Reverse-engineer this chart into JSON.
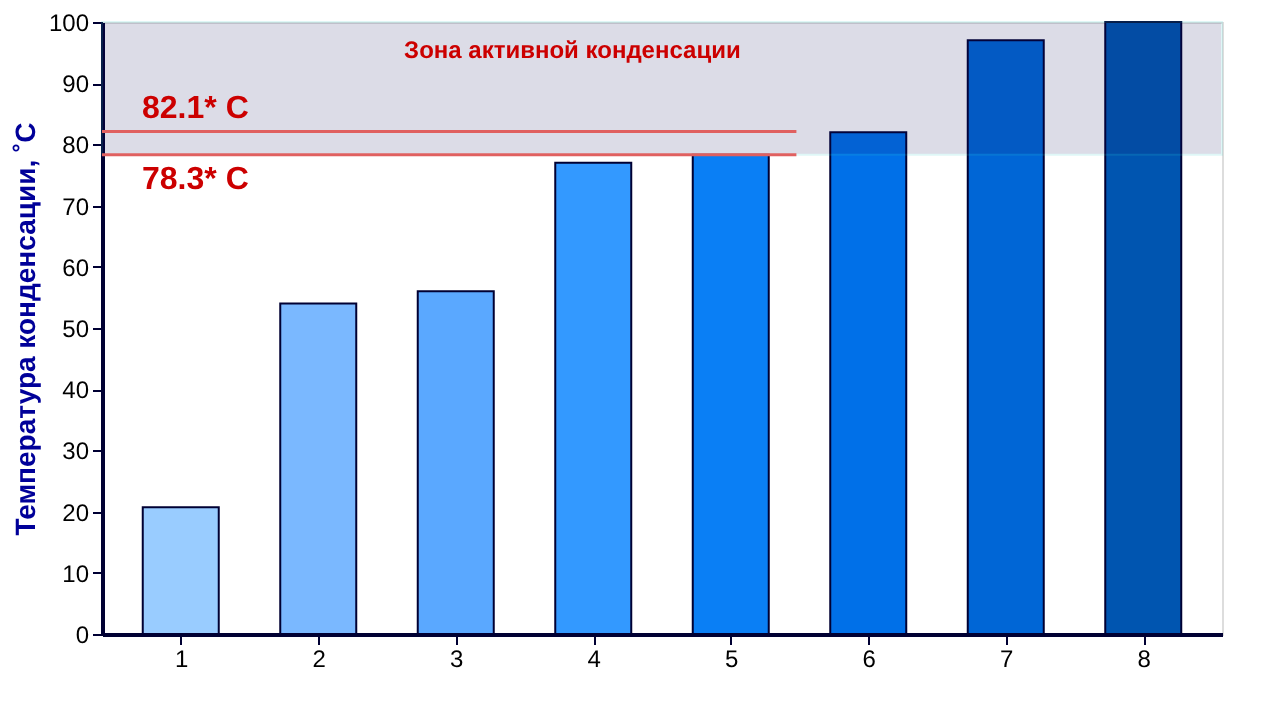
{
  "chart_data": {
    "type": "bar",
    "ylabel": "Температура конденсации, ˚C",
    "categories": [
      "1",
      "2",
      "3",
      "4",
      "5",
      "6",
      "7",
      "8"
    ],
    "values": [
      20.7,
      54,
      56,
      77,
      78.3,
      82,
      97,
      100
    ],
    "colors": [
      "#99ccff",
      "#7ab8ff",
      "#5aa8ff",
      "#3399ff",
      "#0a7ff5",
      "#0070e8",
      "#0066d6",
      "#0055b0"
    ],
    "ylim": [
      0,
      100
    ],
    "yticks": [
      0,
      10,
      20,
      30,
      40,
      50,
      60,
      70,
      80,
      90,
      100
    ],
    "grid": false,
    "bands": [
      {
        "axis": "y",
        "from": 78.3,
        "to": 100,
        "label": "Зона активной конденсации",
        "color": "#1a1a66"
      }
    ],
    "ref_lines": [
      {
        "axis": "y",
        "value": 82.1,
        "label": "82.1* C",
        "color": "#e06060"
      },
      {
        "axis": "y",
        "value": 78.3,
        "label": "78.3* C",
        "color": "#e06060"
      }
    ]
  }
}
